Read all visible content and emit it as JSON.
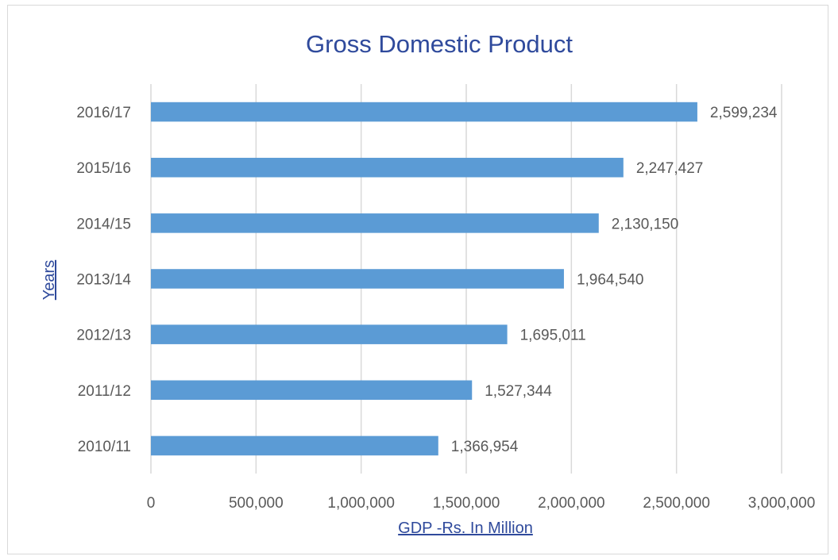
{
  "chart_data": {
    "type": "bar",
    "orientation": "horizontal",
    "title": "Gross Domestic Product",
    "xlabel": "GDP -Rs. In Million",
    "ylabel": "Years",
    "categories": [
      "2010/11",
      "2011/12",
      "2012/13",
      "2013/14",
      "2014/15",
      "2015/16",
      "2016/17"
    ],
    "values": [
      1366954,
      1527344,
      1695011,
      1964540,
      2130150,
      2247427,
      2599234
    ],
    "value_labels": [
      "1,366,954",
      "1,527,344",
      "1,695,011",
      "1,964,540",
      "2,130,150",
      "2,247,427",
      "2,599,234"
    ],
    "xlim": [
      0,
      3000000
    ],
    "xticks": [
      0,
      500000,
      1000000,
      1500000,
      2000000,
      2500000,
      3000000
    ],
    "xtick_labels": [
      "0",
      "500,000",
      "1,000,000",
      "1,500,000",
      "2,000,000",
      "2,500,000",
      "3,000,000"
    ],
    "grid": true,
    "legend": "none",
    "colors": {
      "bar": "#5b9bd5",
      "title": "#2f4a9c",
      "text": "#595959",
      "grid": "#d9d9d9"
    }
  }
}
